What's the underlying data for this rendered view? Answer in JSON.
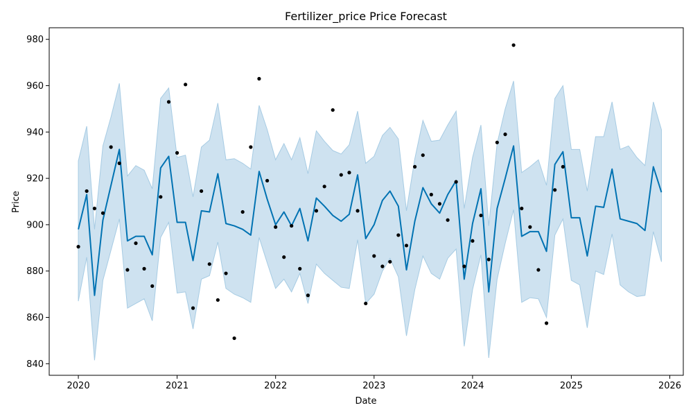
{
  "chart_data": {
    "type": "line",
    "title": "Fertilizer_price Price Forecast",
    "xlabel": "Date",
    "ylabel": "Price",
    "x_domain": [
      "2019-09-15",
      "2026-02-20"
    ],
    "ylim": [
      835,
      985
    ],
    "x_ticks": [
      {
        "date": "2020-01-01",
        "label": "2020"
      },
      {
        "date": "2021-01-01",
        "label": "2021"
      },
      {
        "date": "2022-01-01",
        "label": "2022"
      },
      {
        "date": "2023-01-01",
        "label": "2023"
      },
      {
        "date": "2024-01-01",
        "label": "2024"
      },
      {
        "date": "2025-01-01",
        "label": "2025"
      },
      {
        "date": "2026-01-01",
        "label": "2026"
      }
    ],
    "y_ticks": [
      840,
      860,
      880,
      900,
      920,
      940,
      960,
      980
    ],
    "grid": false,
    "colors": {
      "forecast_line": "#0072b2",
      "interval_fill": "#a6cbe3",
      "interval_edge": "#a6cbe3",
      "observed_points": "#000000"
    },
    "forecast": {
      "dates": [
        "2020-01-01",
        "2020-02-01",
        "2020-03-01",
        "2020-04-01",
        "2020-05-01",
        "2020-06-01",
        "2020-07-01",
        "2020-08-01",
        "2020-09-01",
        "2020-10-01",
        "2020-11-01",
        "2020-12-01",
        "2021-01-01",
        "2021-02-01",
        "2021-03-01",
        "2021-04-01",
        "2021-05-01",
        "2021-06-01",
        "2021-07-01",
        "2021-08-01",
        "2021-09-01",
        "2021-10-01",
        "2021-11-01",
        "2021-12-01",
        "2022-01-01",
        "2022-02-01",
        "2022-03-01",
        "2022-04-01",
        "2022-05-01",
        "2022-06-01",
        "2022-07-01",
        "2022-08-01",
        "2022-09-01",
        "2022-10-01",
        "2022-11-01",
        "2022-12-01",
        "2023-01-01",
        "2023-02-01",
        "2023-03-01",
        "2023-04-01",
        "2023-05-01",
        "2023-06-01",
        "2023-07-01",
        "2023-08-01",
        "2023-09-01",
        "2023-10-01",
        "2023-11-01",
        "2023-12-01",
        "2024-01-01",
        "2024-02-01",
        "2024-03-01",
        "2024-04-01",
        "2024-05-01",
        "2024-06-01",
        "2024-07-01",
        "2024-08-01",
        "2024-09-01",
        "2024-10-01",
        "2024-11-01",
        "2024-12-01",
        "2025-01-01",
        "2025-02-01",
        "2025-03-01",
        "2025-04-01",
        "2025-05-01",
        "2025-06-01",
        "2025-07-01",
        "2025-08-01",
        "2025-09-01",
        "2025-10-01",
        "2025-11-01",
        "2025-12-01"
      ],
      "yhat": [
        898,
        913,
        869.5,
        902,
        917,
        932.5,
        893,
        895,
        895,
        887,
        924.5,
        929.5,
        901,
        901,
        884.5,
        906,
        905.5,
        922,
        900.5,
        899.5,
        898,
        895.5,
        923,
        911,
        900,
        905.5,
        899.5,
        907,
        893,
        911.5,
        908,
        904,
        901.5,
        904.5,
        921.5,
        894,
        900,
        910.5,
        914.5,
        908,
        880.5,
        901.5,
        916,
        909,
        905,
        913,
        919,
        876.5,
        900.5,
        915.5,
        871,
        907,
        920,
        934,
        895,
        897,
        897,
        888.5,
        926,
        931.5,
        903,
        903,
        886.5,
        908,
        907.5,
        924,
        902.5,
        901.5,
        900.5,
        897.5,
        925,
        914
      ],
      "yhat_upper": [
        927.5,
        942.5,
        898,
        934,
        946.5,
        961,
        921,
        925.5,
        923.5,
        915.5,
        954.5,
        959,
        929,
        930,
        912,
        933.5,
        936.5,
        952.5,
        928,
        928.5,
        926.5,
        924,
        951.5,
        941,
        928,
        935,
        928,
        937.5,
        922,
        940.5,
        936,
        932,
        930.5,
        934.5,
        949,
        926.5,
        929.5,
        938.5,
        942,
        937,
        906,
        928.5,
        945,
        936,
        936.5,
        943,
        949,
        907,
        929,
        943,
        899.5,
        935,
        950,
        962,
        922.5,
        925,
        928,
        917,
        954.5,
        960,
        932.5,
        932.5,
        914.5,
        938,
        938,
        953,
        932.5,
        934,
        929,
        925.5,
        953,
        941
      ],
      "yhat_lower": [
        867,
        886,
        841.5,
        876,
        889,
        902.5,
        864,
        866,
        868,
        858.5,
        894.5,
        901,
        870.5,
        871,
        855,
        876.5,
        878,
        892.5,
        872.5,
        870,
        868.5,
        866.5,
        894.5,
        883.5,
        872.5,
        876.5,
        871,
        879,
        866,
        883,
        879,
        876,
        873,
        872.5,
        893.5,
        866,
        870,
        880,
        885.5,
        877.5,
        852,
        872,
        886.5,
        879,
        876.5,
        885.5,
        889.5,
        847.5,
        872,
        887,
        842.5,
        876.5,
        892,
        906.5,
        866.5,
        868.5,
        868,
        860,
        895.5,
        902.5,
        876,
        874,
        855.5,
        880,
        878.5,
        896,
        874,
        871,
        869,
        869.5,
        897,
        884
      ]
    },
    "observed": {
      "dates": [
        "2020-01-01",
        "2020-02-01",
        "2020-03-01",
        "2020-04-01",
        "2020-05-01",
        "2020-06-01",
        "2020-07-01",
        "2020-08-01",
        "2020-09-01",
        "2020-10-01",
        "2020-11-01",
        "2020-12-01",
        "2021-01-01",
        "2021-02-01",
        "2021-03-01",
        "2021-04-01",
        "2021-05-01",
        "2021-06-01",
        "2021-07-01",
        "2021-08-01",
        "2021-09-01",
        "2021-10-01",
        "2021-11-01",
        "2021-12-01",
        "2022-01-01",
        "2022-02-01",
        "2022-03-01",
        "2022-04-01",
        "2022-05-01",
        "2022-06-01",
        "2022-07-01",
        "2022-08-01",
        "2022-09-01",
        "2022-10-01",
        "2022-11-01",
        "2022-12-01",
        "2023-01-01",
        "2023-02-01",
        "2023-03-01",
        "2023-04-01",
        "2023-05-01",
        "2023-06-01",
        "2023-07-01",
        "2023-08-01",
        "2023-09-01",
        "2023-10-01",
        "2023-11-01",
        "2023-12-01",
        "2024-01-01",
        "2024-02-01",
        "2024-03-01",
        "2024-04-01",
        "2024-05-01",
        "2024-06-01",
        "2024-07-01",
        "2024-08-01",
        "2024-09-01",
        "2024-10-01",
        "2024-11-01",
        "2024-12-01"
      ],
      "values": [
        890.5,
        914.5,
        907,
        905,
        933.5,
        926.5,
        880.5,
        892,
        881,
        873.5,
        912,
        953,
        931,
        960.5,
        864,
        914.5,
        883,
        867.5,
        879,
        851,
        905.5,
        933.5,
        963,
        919,
        899,
        886,
        899.5,
        881,
        869.5,
        906,
        916.5,
        949.5,
        921.5,
        922.5,
        906,
        866,
        886.5,
        882,
        884,
        895.5,
        891,
        925,
        930,
        913,
        909,
        902,
        918.5,
        882,
        893,
        904,
        885,
        935.5,
        939,
        977.5,
        907,
        899,
        880.5,
        857.5,
        915,
        925
      ]
    }
  }
}
